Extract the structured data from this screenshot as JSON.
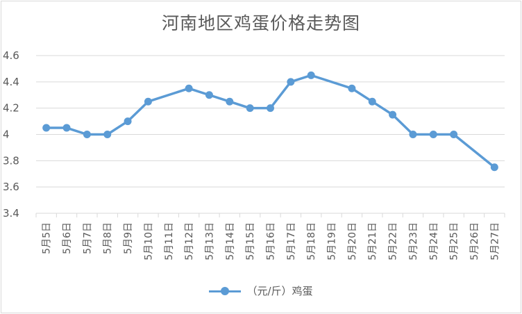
{
  "chart_data": {
    "type": "line",
    "title": "河南地区鸡蛋价格走势图",
    "categories": [
      "5月5日",
      "5月6日",
      "5月7日",
      "5月8日",
      "5月9日",
      "5月10日",
      "5月11日",
      "5月12日",
      "5月13日",
      "5月14日",
      "5月15日",
      "5月16日",
      "5月17日",
      "5月18日",
      "5月19日",
      "5月20日",
      "5月21日",
      "5月22日",
      "5月23日",
      "5月24日",
      "5月25日",
      "5月26日",
      "5月27日"
    ],
    "series": [
      {
        "name": "（元/斤）鸡蛋",
        "color": "#5b9bd5",
        "values": [
          4.05,
          4.05,
          4.0,
          4.0,
          4.1,
          4.25,
          null,
          4.35,
          4.3,
          4.25,
          4.2,
          4.2,
          4.4,
          4.45,
          null,
          4.35,
          4.25,
          4.15,
          4.0,
          4.0,
          4.0,
          null,
          3.75
        ]
      }
    ],
    "ylim": [
      3.4,
      4.6
    ],
    "yticks": [
      "3.4",
      "3.6",
      "3.8",
      "4",
      "4.2",
      "4.4",
      "4.6"
    ],
    "xlabel": "",
    "ylabel": "",
    "grid": true,
    "legend": "bottom"
  }
}
